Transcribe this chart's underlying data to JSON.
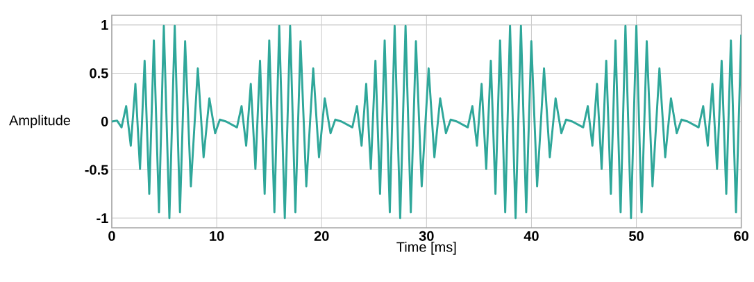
{
  "chart_data": {
    "type": "line",
    "xlabel": "Time [ms]",
    "ylabel": "Amplitude",
    "xlim": [
      0,
      60
    ],
    "ylim": [
      -1.1,
      1.1
    ],
    "xticks": [
      0,
      10,
      20,
      30,
      40,
      50,
      60
    ],
    "yticks": [
      -1,
      -0.5,
      0,
      0.5,
      1
    ],
    "grid": true,
    "series": [
      {
        "color": "#2fa79a",
        "x": [
          0,
          0.5,
          0.93,
          1.37,
          1.81,
          2.25,
          2.69,
          3.13,
          3.57,
          4.01,
          4.5,
          4.96,
          5.49,
          6.0,
          6.5,
          6.99,
          7.54,
          8.2,
          8.75,
          9.3,
          9.85,
          10.3,
          10.9,
          11.93,
          12.37,
          12.81,
          13.25,
          13.69,
          14.13,
          14.57,
          15.01,
          15.5,
          15.96,
          16.49,
          17.0,
          17.5,
          17.99,
          18.54,
          19.2,
          19.75,
          20.3,
          20.85,
          21.3,
          21.9,
          22.93,
          23.37,
          23.81,
          24.25,
          24.69,
          25.13,
          25.57,
          26.01,
          26.5,
          26.96,
          27.49,
          28.0,
          28.5,
          28.99,
          29.54,
          30.2,
          30.75,
          31.3,
          31.85,
          32.3,
          32.9,
          33.93,
          34.37,
          34.81,
          35.25,
          35.69,
          36.13,
          36.57,
          37.01,
          37.5,
          37.96,
          38.49,
          39.0,
          39.5,
          39.99,
          40.54,
          41.2,
          41.75,
          42.3,
          42.85,
          43.3,
          43.9,
          44.93,
          45.37,
          45.81,
          46.25,
          46.69,
          47.13,
          47.57,
          48.01,
          48.5,
          48.96,
          49.49,
          50.0,
          50.5,
          50.99,
          51.54,
          52.2,
          52.75,
          53.3,
          53.85,
          54.3,
          54.9,
          55.93,
          56.37,
          56.81,
          57.25,
          57.69,
          58.13,
          58.57,
          59.01,
          59.5,
          60
        ],
        "values": [
          0,
          0.01,
          -0.06,
          0.16,
          -0.25,
          0.39,
          -0.49,
          0.63,
          -0.75,
          0.84,
          -0.94,
          0.99,
          -1.0,
          0.99,
          -0.94,
          0.83,
          -0.67,
          0.55,
          -0.37,
          0.24,
          -0.12,
          0.02,
          0,
          -0.06,
          0.16,
          -0.25,
          0.39,
          -0.49,
          0.63,
          -0.75,
          0.84,
          -0.94,
          0.99,
          -1.0,
          0.99,
          -0.94,
          0.83,
          -0.67,
          0.55,
          -0.37,
          0.24,
          -0.12,
          0.02,
          0,
          -0.06,
          0.16,
          -0.25,
          0.39,
          -0.49,
          0.63,
          -0.75,
          0.84,
          -0.94,
          0.99,
          -1.0,
          0.99,
          -0.94,
          0.83,
          -0.67,
          0.55,
          -0.37,
          0.24,
          -0.12,
          0.02,
          0,
          -0.06,
          0.16,
          -0.25,
          0.39,
          -0.49,
          0.63,
          -0.75,
          0.84,
          -0.94,
          0.99,
          -1.0,
          0.99,
          -0.94,
          0.83,
          -0.67,
          0.55,
          -0.37,
          0.24,
          -0.12,
          0.02,
          0,
          -0.06,
          0.16,
          -0.25,
          0.39,
          -0.49,
          0.63,
          -0.75,
          0.84,
          -0.94,
          0.99,
          -1.0,
          0.99,
          -0.94,
          0.83,
          -0.67,
          0.55,
          -0.37,
          0.24,
          -0.12,
          0.02,
          0,
          -0.06,
          0.16,
          -0.25,
          0.39,
          -0.49,
          0.63,
          -0.75,
          0.84,
          -0.94,
          0.9
        ]
      }
    ]
  }
}
